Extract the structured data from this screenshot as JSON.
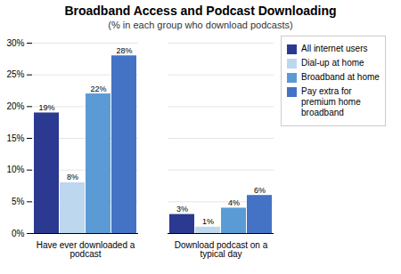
{
  "chart_data": {
    "type": "bar",
    "title": "Broadband Access and Podcast Downloading",
    "subtitle": "(% in each group who download podcasts)",
    "categories": [
      "Have ever downloaded a\npodcast",
      "Download podcast on a\ntypical day"
    ],
    "series": [
      {
        "name": "All internet users",
        "color": "#2B3990",
        "values": [
          19,
          3
        ],
        "value_labels": [
          "19%",
          "3%"
        ]
      },
      {
        "name": "Dial-up at home",
        "color": "#BDD7EE",
        "values": [
          8,
          1
        ],
        "value_labels": [
          "8%",
          "1%"
        ]
      },
      {
        "name": "Broadband at home",
        "color": "#5B9BD5",
        "values": [
          22,
          4
        ],
        "value_labels": [
          "22%",
          "4%"
        ]
      },
      {
        "name": "Pay extra for\npremium home\nbroadband",
        "color": "#4472C4",
        "values": [
          28,
          6
        ],
        "value_labels": [
          "28%",
          "6%"
        ]
      }
    ],
    "ylim": [
      0,
      30
    ],
    "yticks": [
      {
        "value": 0,
        "label": "0%"
      },
      {
        "value": 5,
        "label": "5%"
      },
      {
        "value": 10,
        "label": "10%"
      },
      {
        "value": 15,
        "label": "15%"
      },
      {
        "value": 20,
        "label": "20%"
      },
      {
        "value": 25,
        "label": "25%"
      },
      {
        "value": 30,
        "label": "30%"
      }
    ],
    "grid": true,
    "data_labels": true,
    "legend": "right"
  }
}
